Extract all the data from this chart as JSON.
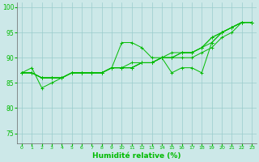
{
  "xlabel": "Humidité relative (%)",
  "xlim": [
    -0.5,
    23.5
  ],
  "ylim": [
    73,
    101
  ],
  "yticks": [
    75,
    80,
    85,
    90,
    95,
    100
  ],
  "xticks": [
    0,
    1,
    2,
    3,
    4,
    5,
    6,
    7,
    8,
    9,
    10,
    11,
    12,
    13,
    14,
    15,
    16,
    17,
    18,
    19,
    20,
    21,
    22,
    23
  ],
  "bg_color": "#cce8e8",
  "grid_color": "#99cccc",
  "line_color": "#00bb00",
  "lines": [
    [
      87,
      88,
      84,
      85,
      86,
      87,
      87,
      87,
      87,
      88,
      93,
      93,
      92,
      90,
      90,
      87,
      88,
      88,
      87,
      93,
      95,
      96,
      97,
      97
    ],
    [
      87,
      87,
      86,
      86,
      86,
      87,
      87,
      87,
      87,
      88,
      88,
      89,
      89,
      89,
      90,
      90,
      90,
      90,
      91,
      92,
      94,
      95,
      97,
      97
    ],
    [
      87,
      87,
      86,
      86,
      86,
      87,
      87,
      87,
      87,
      88,
      88,
      88,
      89,
      89,
      90,
      90,
      91,
      91,
      92,
      93,
      95,
      96,
      97,
      97
    ],
    [
      87,
      87,
      86,
      86,
      86,
      87,
      87,
      87,
      87,
      88,
      88,
      88,
      89,
      89,
      90,
      90,
      91,
      91,
      92,
      94,
      95,
      96,
      97,
      97
    ],
    [
      87,
      87,
      86,
      86,
      86,
      87,
      87,
      87,
      87,
      88,
      88,
      88,
      89,
      89,
      90,
      91,
      91,
      91,
      92,
      94,
      95,
      96,
      97,
      97
    ]
  ],
  "figsize": [
    3.2,
    2.0
  ],
  "dpi": 100
}
